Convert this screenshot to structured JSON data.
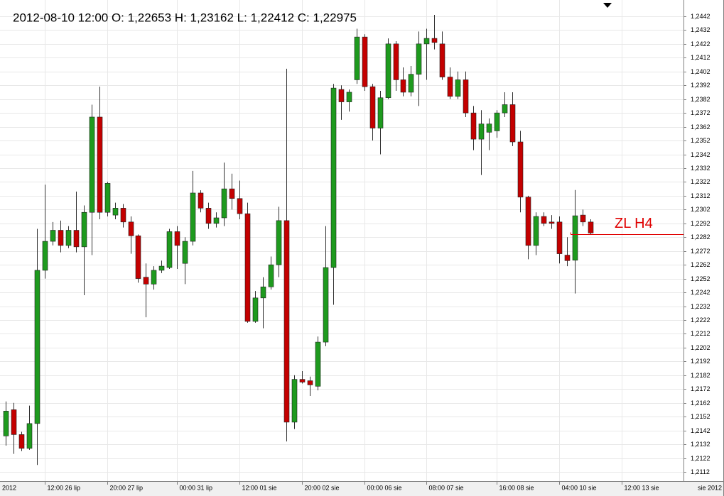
{
  "chart_data": {
    "type": "candlestick",
    "title": "2012-08-10 12:00 O: 1,22653 H: 1,23162 L: 1,22412 C: 1,22975",
    "x_axis_start_label": "2012",
    "x_axis_end_label": "sie 2012",
    "categories": [
      null,
      null,
      null,
      null,
      null,
      "12:00 26 lip",
      null,
      null,
      null,
      null,
      null,
      null,
      null,
      "20:00 27 lip",
      null,
      null,
      null,
      null,
      null,
      null,
      null,
      null,
      "00:00 31 lip",
      null,
      null,
      null,
      null,
      null,
      null,
      null,
      "12:00 01 sie",
      null,
      null,
      null,
      null,
      null,
      null,
      null,
      "20:00 02 sie",
      null,
      null,
      null,
      null,
      null,
      null,
      null,
      "00:00 06 sie",
      null,
      null,
      null,
      null,
      null,
      null,
      null,
      "08:00 07 sie",
      null,
      null,
      null,
      null,
      null,
      null,
      null,
      null,
      "16:00 08 sie",
      null,
      null,
      null,
      null,
      null,
      null,
      null,
      "04:00 10 sie",
      null,
      null,
      null,
      null,
      null,
      null,
      null,
      "12:00 13 sie"
    ],
    "series": [
      {
        "up_color": "#1e9a1e",
        "down_color": "#c40000",
        "open": [
          1.2138,
          1.2157,
          1.2139,
          1.2129,
          1.2147,
          1.2258,
          1.2279,
          1.2287,
          1.2276,
          1.2287,
          1.2275,
          1.23,
          1.2369,
          1.23,
          1.2298,
          1.2303,
          1.2293,
          1.2283,
          1.2253,
          1.2248,
          1.2258,
          1.226,
          1.2286,
          1.2263,
          1.2279,
          1.2314,
          1.2303,
          1.2292,
          1.2296,
          1.2317,
          1.231,
          1.2299,
          1.2221,
          1.2238,
          1.2246,
          1.2262,
          1.2294,
          1.2148,
          1.2179,
          1.2178,
          1.2174,
          1.2206,
          1.226,
          1.2389,
          1.238,
          1.2396,
          1.2427,
          1.2391,
          1.2361,
          1.2383,
          1.2422,
          1.2396,
          1.2387,
          1.24,
          1.2422,
          1.2426,
          1.2422,
          1.2398,
          1.2384,
          1.2396,
          1.2372,
          1.2353,
          1.2358,
          1.2359,
          1.2372,
          1.2378,
          1.2351,
          1.2311,
          1.2276,
          1.2297,
          1.2293,
          1.2293,
          1.2269,
          1.22653,
          1.2298,
          1.2293,
          null,
          null,
          null,
          null
        ],
        "high": [
          1.2163,
          1.2162,
          1.2141,
          1.216,
          1.2288,
          1.232,
          1.2293,
          1.2294,
          1.229,
          1.2315,
          1.2305,
          1.2378,
          1.2391,
          1.2322,
          1.2307,
          1.2306,
          1.2297,
          1.2284,
          1.2263,
          1.2261,
          1.2265,
          1.2288,
          1.229,
          1.2282,
          1.233,
          1.2316,
          1.2307,
          1.23,
          1.2336,
          1.2328,
          1.2323,
          1.2307,
          1.2243,
          1.2253,
          1.2268,
          1.2304,
          1.2404,
          1.2182,
          1.2185,
          1.2181,
          1.221,
          1.229,
          1.2393,
          1.2392,
          1.2389,
          1.2433,
          1.2429,
          1.2393,
          1.2388,
          1.2426,
          1.2424,
          1.2405,
          1.2406,
          1.2431,
          1.2433,
          1.2443,
          1.2431,
          1.2405,
          1.2402,
          1.2402,
          1.2377,
          1.2374,
          1.2368,
          1.2374,
          1.2387,
          1.2387,
          1.2359,
          1.2312,
          1.23,
          1.23,
          1.2298,
          1.2297,
          1.2282,
          1.23162,
          1.2302,
          1.2295,
          null,
          null,
          null,
          null
        ],
        "low": [
          1.2131,
          1.2125,
          1.2127,
          1.2128,
          1.2117,
          1.2252,
          1.2276,
          1.2271,
          1.2274,
          1.2271,
          1.224,
          1.2269,
          1.2295,
          1.2297,
          1.2295,
          1.2289,
          1.227,
          1.2249,
          1.2224,
          1.2244,
          1.2256,
          1.2259,
          1.2259,
          1.2248,
          1.2276,
          1.23,
          1.2288,
          1.2289,
          1.229,
          1.2302,
          1.2295,
          1.222,
          1.222,
          1.2216,
          1.2244,
          1.2253,
          1.2134,
          1.2143,
          1.2176,
          1.2167,
          1.2171,
          1.2203,
          1.2233,
          1.2367,
          1.2373,
          1.2393,
          1.2388,
          1.2352,
          1.2342,
          1.2382,
          1.2388,
          1.2384,
          1.2384,
          1.2377,
          1.2396,
          1.2418,
          1.2396,
          1.2382,
          1.2382,
          1.2369,
          1.2345,
          1.2327,
          1.2345,
          1.2354,
          1.2369,
          1.2348,
          1.23,
          1.2266,
          1.2269,
          1.229,
          1.2288,
          1.2263,
          1.2261,
          1.22412,
          1.229,
          1.2284,
          null,
          null,
          null,
          null
        ],
        "close": [
          1.2156,
          1.2139,
          1.2129,
          1.2147,
          1.2258,
          1.2279,
          1.2287,
          1.2276,
          1.2287,
          1.2275,
          1.23,
          1.2369,
          1.23,
          1.2321,
          1.2303,
          1.2293,
          1.2283,
          1.2252,
          1.2248,
          1.2258,
          1.2261,
          1.2286,
          1.2276,
          1.2279,
          1.2314,
          1.2303,
          1.2292,
          1.2296,
          1.2317,
          1.231,
          1.2299,
          1.2221,
          1.2238,
          1.2246,
          1.2262,
          1.2294,
          1.2148,
          1.2179,
          1.2177,
          1.2175,
          1.2206,
          1.226,
          1.239,
          1.238,
          1.2387,
          1.2427,
          1.2391,
          1.2361,
          1.2383,
          1.2422,
          1.2396,
          1.2387,
          1.24,
          1.2422,
          1.2426,
          1.2423,
          1.2398,
          1.2384,
          1.2396,
          1.2372,
          1.2353,
          1.2364,
          1.2364,
          1.2372,
          1.2378,
          1.2351,
          1.2311,
          1.2276,
          1.2297,
          1.2292,
          1.2292,
          1.227,
          1.2265,
          1.22975,
          1.2293,
          1.2285,
          null,
          null,
          null,
          null
        ]
      }
    ],
    "ylim": [
      1.21053,
      1.24538
    ],
    "yticks": [
      {
        "value": 1.2112,
        "label": "1,2112"
      },
      {
        "value": 1.2122,
        "label": "1,2122"
      },
      {
        "value": 1.2132,
        "label": "1,2132"
      },
      {
        "value": 1.2142,
        "label": "1,2142"
      },
      {
        "value": 1.2152,
        "label": "1,2152"
      },
      {
        "value": 1.2162,
        "label": "1,2162"
      },
      {
        "value": 1.2172,
        "label": "1,2172"
      },
      {
        "value": 1.2182,
        "label": "1,2182"
      },
      {
        "value": 1.2192,
        "label": "1,2192"
      },
      {
        "value": 1.2202,
        "label": "1,2202"
      },
      {
        "value": 1.2212,
        "label": "1,2212"
      },
      {
        "value": 1.2222,
        "label": "1,2222"
      },
      {
        "value": 1.2232,
        "label": "1,2232"
      },
      {
        "value": 1.2242,
        "label": "1,2242"
      },
      {
        "value": 1.2252,
        "label": "1,2252"
      },
      {
        "value": 1.2262,
        "label": "1,2262"
      },
      {
        "value": 1.2272,
        "label": "1,2272"
      },
      {
        "value": 1.2282,
        "label": "1,2282"
      },
      {
        "value": 1.2292,
        "label": "1,2292"
      },
      {
        "value": 1.2302,
        "label": "1,2302"
      },
      {
        "value": 1.2312,
        "label": "1,2312"
      },
      {
        "value": 1.2322,
        "label": "1,2322"
      },
      {
        "value": 1.2332,
        "label": "1,2332"
      },
      {
        "value": 1.2342,
        "label": "1,2342"
      },
      {
        "value": 1.2352,
        "label": "1,2352"
      },
      {
        "value": 1.2362,
        "label": "1,2362"
      },
      {
        "value": 1.2372,
        "label": "1,2372"
      },
      {
        "value": 1.2382,
        "label": "1,2382"
      },
      {
        "value": 1.2392,
        "label": "1,2392"
      },
      {
        "value": 1.2402,
        "label": "1,2402"
      },
      {
        "value": 1.2412,
        "label": "1,2412"
      },
      {
        "value": 1.2422,
        "label": "1,2422"
      },
      {
        "value": 1.2432,
        "label": "1,2432"
      },
      {
        "value": 1.2442,
        "label": "1,2442"
      }
    ],
    "grid": true,
    "annotations": [
      {
        "text": "ZL H4",
        "value": 1.2284,
        "color": "#e00000"
      }
    ]
  }
}
